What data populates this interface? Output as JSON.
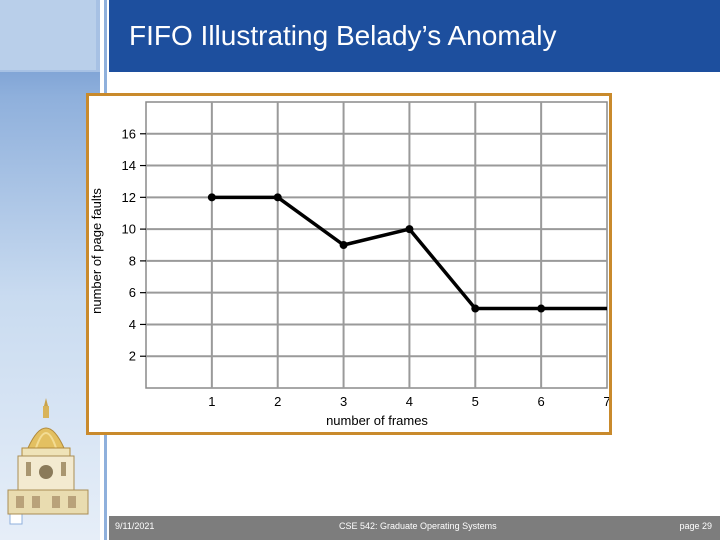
{
  "slide": {
    "title": "FIFO Illustrating Belady’s Anomaly"
  },
  "footer": {
    "date": "9/11/2021",
    "course": "CSE 542: Graduate Operating Systems",
    "page": "page 29"
  },
  "colors": {
    "header": "#1d4f9e",
    "frame_border": "#c98a2c",
    "footer": "#7d7d7d",
    "sidebar": "#8fb0dc"
  },
  "logo": {
    "icon": "golden-dome-icon"
  },
  "chart_data": {
    "type": "line",
    "title": "",
    "xlabel": "number of frames",
    "ylabel": "number of page faults",
    "x": [
      1,
      2,
      3,
      4,
      5,
      6,
      7
    ],
    "series": [
      {
        "values": [
          12,
          12,
          9,
          10,
          5,
          5,
          5
        ]
      }
    ],
    "xticks": [
      "1",
      "2",
      "3",
      "4",
      "5",
      "6",
      "7"
    ],
    "yticks": [
      "2",
      "4",
      "6",
      "8",
      "10",
      "12",
      "14",
      "16"
    ],
    "xlim": [
      0,
      7
    ],
    "ylim": [
      0,
      18
    ],
    "grid": true,
    "markers_shown_at": [
      1,
      2,
      3,
      4,
      5,
      6
    ],
    "line_color": "#000000"
  }
}
